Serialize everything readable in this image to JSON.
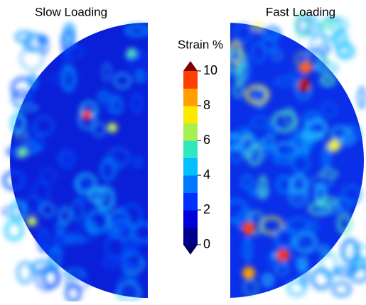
{
  "panels": [
    {
      "label": "Slow Loading"
    },
    {
      "label": "Fast Loading"
    }
  ],
  "colorbar": {
    "title": "Strain %",
    "lim": [
      0,
      10
    ],
    "ticks": [
      0,
      2,
      4,
      6,
      8,
      10
    ],
    "colors": [
      "#00008f",
      "#0000d8",
      "#0030ff",
      "#0078ff",
      "#00c0ff",
      "#30e8c0",
      "#a8f050",
      "#ffe800",
      "#ffa000",
      "#ff4000"
    ],
    "under_color": "#000060",
    "over_color": "#800000"
  }
}
